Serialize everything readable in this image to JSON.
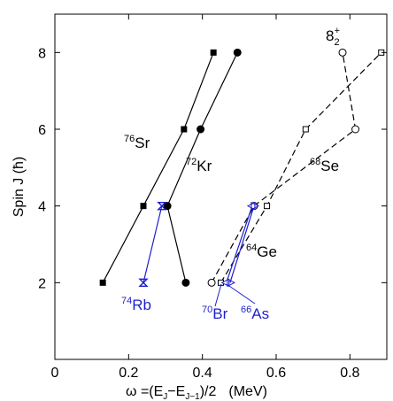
{
  "chart_data": {
    "type": "line",
    "xlabel": "ω =(E J −E J−1)/2   (MeV)",
    "xlabel_parts": {
      "omega": "ω",
      "eq_open": " =(E",
      "sub1": "J",
      "minus": "−E",
      "sub2": "J−1",
      "close": ")/2",
      "unit": "(MeV)"
    },
    "ylabel": "Spin J  (ħ)",
    "xlim": [
      0,
      0.9
    ],
    "ylim": [
      0,
      9
    ],
    "xticks": [
      0,
      0.2,
      0.4,
      0.6,
      0.8
    ],
    "xtick_labels": [
      "0",
      "0.2",
      "0.4",
      "0.6",
      "0.8"
    ],
    "yticks": [
      2,
      4,
      6,
      8
    ],
    "ytick_labels": [
      "2",
      "4",
      "6",
      "8"
    ],
    "grid": false,
    "series": [
      {
        "name": "76Sr",
        "mass": "76",
        "element": "Sr",
        "color": "#000000",
        "marker": "filled-square",
        "line": "solid",
        "points": [
          [
            0.13,
            2
          ],
          [
            0.24,
            4
          ],
          [
            0.35,
            6
          ],
          [
            0.43,
            8
          ]
        ]
      },
      {
        "name": "72Kr",
        "mass": "72",
        "element": "Kr",
        "color": "#000000",
        "marker": "filled-circle",
        "line": "solid",
        "points": [
          [
            0.355,
            2
          ],
          [
            0.305,
            4
          ],
          [
            0.395,
            6
          ],
          [
            0.495,
            8
          ]
        ]
      },
      {
        "name": "68Se",
        "mass": "68",
        "element": "Se",
        "color": "#000000",
        "marker": "open-circle",
        "line": "dashed",
        "points": [
          [
            0.425,
            2
          ],
          [
            0.54,
            4
          ],
          [
            0.815,
            6
          ],
          [
            0.78,
            8
          ]
        ]
      },
      {
        "name": "64Ge",
        "mass": "64",
        "element": "Ge",
        "color": "#000000",
        "marker": "open-square",
        "line": "dashed",
        "points": [
          [
            0.45,
            2
          ],
          [
            0.575,
            4
          ],
          [
            0.68,
            6
          ],
          [
            0.885,
            8
          ]
        ]
      },
      {
        "name": "74Rb",
        "mass": "74",
        "element": "Rb",
        "color": "#1f1fcc",
        "marker": "bowtie",
        "line": "solid",
        "points": [
          [
            0.24,
            2
          ],
          [
            0.29,
            4
          ]
        ]
      },
      {
        "name": "70Br",
        "mass": "70",
        "element": "Br",
        "color": "#1f1fcc",
        "marker": "open-triangle-left",
        "line": "solid",
        "points": [
          [
            0.465,
            2
          ],
          [
            0.535,
            4
          ]
        ]
      },
      {
        "name": "66As",
        "mass": "66",
        "element": "As",
        "color": "#1f1fcc",
        "marker": "open-triangle-right",
        "line": "solid",
        "points": [
          [
            0.475,
            2
          ],
          [
            0.54,
            4
          ]
        ]
      }
    ],
    "annotations": [
      {
        "text": "8",
        "sub": "2",
        "sup": "+",
        "refers_to": "68Se 8+ second state"
      }
    ]
  }
}
